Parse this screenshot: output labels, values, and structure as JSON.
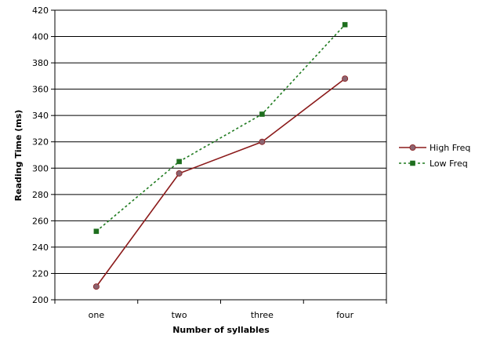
{
  "chart_data": {
    "type": "line",
    "categories": [
      "one",
      "two",
      "three",
      "four"
    ],
    "series": [
      {
        "name": "High Freq",
        "values": [
          210,
          296,
          320,
          368
        ],
        "color": "#8b1a1a",
        "marker": "circle",
        "marker_color": "#8c6470",
        "line_style": "solid"
      },
      {
        "name": "Low Freq",
        "values": [
          252,
          305,
          341,
          409
        ],
        "color": "#1e7a1e",
        "marker": "square",
        "marker_color": "#1e6e1e",
        "line_style": "dashed"
      }
    ],
    "xlabel": "Number of syllables",
    "ylabel": "Reading Time (ms)",
    "ylim": [
      200,
      420
    ],
    "ytick_step": 20,
    "grid": "horizontal",
    "legend_position": "right"
  }
}
